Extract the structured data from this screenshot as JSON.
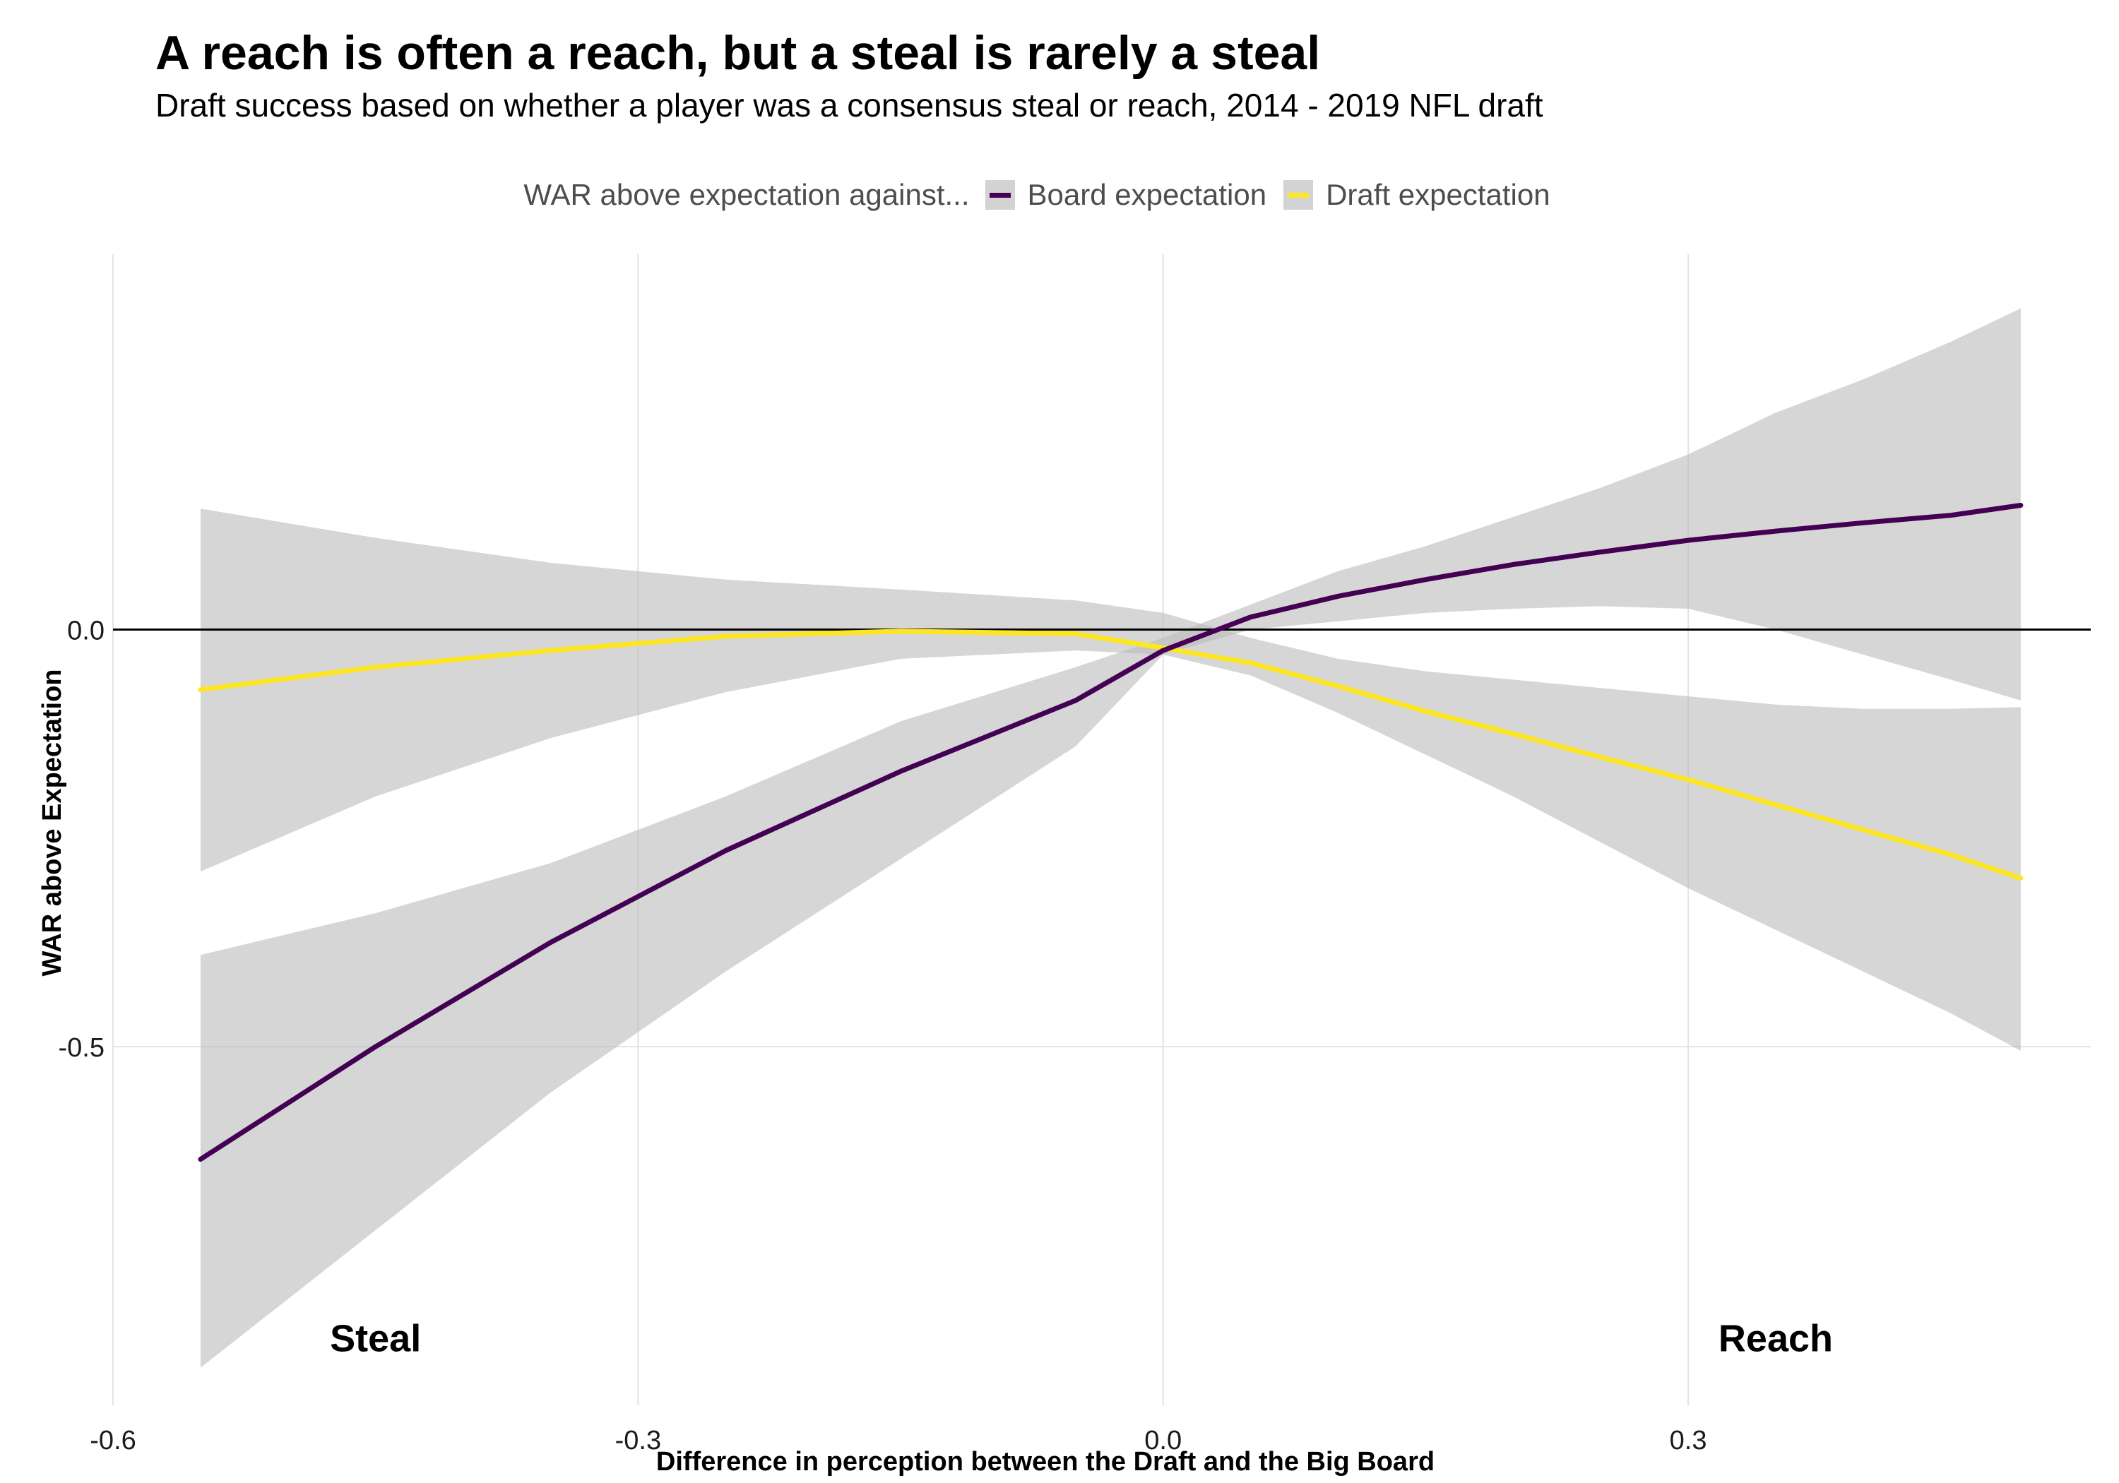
{
  "chart_data": {
    "type": "line",
    "title": "A reach is often a reach, but a steal is rarely a steal",
    "subtitle": "Draft success based on whether a player was a consensus steal or reach, 2014 - 2019 NFL draft",
    "xlabel": "Difference in perception between the Draft and the Big Board",
    "ylabel": "WAR above Expectation",
    "xlim": [
      -0.6,
      0.53
    ],
    "ylim": [
      -0.93,
      0.45
    ],
    "x_ticks": [
      -0.6,
      -0.3,
      0.0,
      0.3
    ],
    "x_tick_labels": [
      "-0.6",
      "-0.3",
      "0.0",
      "0.3"
    ],
    "y_ticks": [
      0.0,
      -0.5
    ],
    "y_tick_labels": [
      "0.0",
      "-0.5"
    ],
    "grid": true,
    "reference_line_y": 0.0,
    "legend": {
      "title": "WAR above expectation against...",
      "position": "top"
    },
    "annotations": [
      {
        "text": "Steal",
        "x": -0.45,
        "y": -0.85
      },
      {
        "text": "Reach",
        "x": 0.35,
        "y": -0.85
      }
    ],
    "series": [
      {
        "name": "Board expectation",
        "color": "#440154",
        "x": [
          -0.55,
          -0.45,
          -0.35,
          -0.25,
          -0.15,
          -0.05,
          0.0,
          0.05,
          0.1,
          0.15,
          0.2,
          0.25,
          0.3,
          0.35,
          0.4,
          0.45,
          0.49
        ],
        "y": [
          -0.635,
          -0.5,
          -0.375,
          -0.265,
          -0.17,
          -0.085,
          -0.025,
          0.015,
          0.04,
          0.06,
          0.078,
          0.093,
          0.107,
          0.118,
          0.128,
          0.137,
          0.149
        ],
        "lower": [
          -0.885,
          -0.72,
          -0.555,
          -0.41,
          -0.275,
          -0.14,
          -0.03,
          0.0,
          0.01,
          0.02,
          0.025,
          0.028,
          0.025,
          0.0,
          -0.03,
          -0.06,
          -0.085
        ],
        "upper": [
          -0.39,
          -0.34,
          -0.28,
          -0.2,
          -0.11,
          -0.045,
          -0.01,
          0.03,
          0.07,
          0.1,
          0.135,
          0.17,
          0.21,
          0.26,
          0.3,
          0.345,
          0.385
        ]
      },
      {
        "name": "Draft expectation",
        "color": "#FDE725",
        "x": [
          -0.55,
          -0.45,
          -0.35,
          -0.25,
          -0.15,
          -0.05,
          0.0,
          0.05,
          0.1,
          0.15,
          0.2,
          0.25,
          0.3,
          0.35,
          0.4,
          0.45,
          0.49
        ],
        "y": [
          -0.072,
          -0.045,
          -0.025,
          -0.008,
          -0.002,
          -0.005,
          -0.022,
          -0.04,
          -0.068,
          -0.098,
          -0.125,
          -0.153,
          -0.18,
          -0.21,
          -0.24,
          -0.27,
          -0.298
        ],
        "lower": [
          -0.29,
          -0.2,
          -0.13,
          -0.075,
          -0.035,
          -0.025,
          -0.03,
          -0.055,
          -0.1,
          -0.15,
          -0.2,
          -0.255,
          -0.31,
          -0.36,
          -0.41,
          -0.46,
          -0.505
        ],
        "upper": [
          0.145,
          0.11,
          0.08,
          0.06,
          0.048,
          0.035,
          0.02,
          -0.01,
          -0.035,
          -0.05,
          -0.06,
          -0.07,
          -0.08,
          -0.09,
          -0.095,
          -0.095,
          -0.093
        ]
      }
    ]
  }
}
